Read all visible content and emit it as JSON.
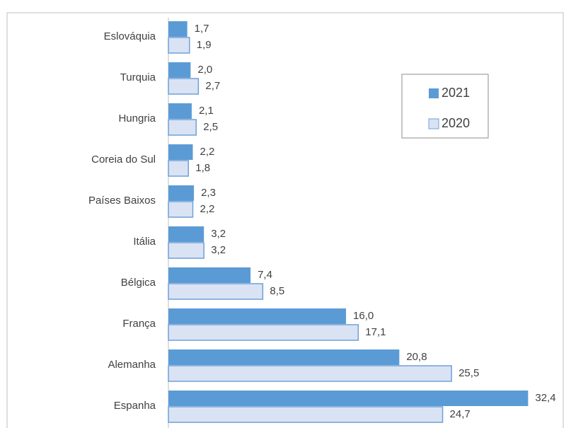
{
  "chart_data": {
    "type": "bar",
    "orientation": "horizontal",
    "categories": [
      "Eslováquia",
      "Turquia",
      "Hungria",
      "Coreia do Sul",
      "Países Baixos",
      "Itália",
      "Bélgica",
      "França",
      "Alemanha",
      "Espanha"
    ],
    "series": [
      {
        "name": "2021",
        "color": "#5b9bd5",
        "values": [
          1.7,
          2.0,
          2.1,
          2.2,
          2.3,
          3.2,
          7.4,
          16.0,
          20.8,
          32.4
        ],
        "value_labels": [
          "1,7",
          "2,0",
          "2,1",
          "2,2",
          "2,3",
          "3,2",
          "7,4",
          "16,0",
          "20,8",
          "32,4"
        ]
      },
      {
        "name": "2020",
        "color": "#dae3f3",
        "values": [
          1.9,
          2.7,
          2.5,
          1.8,
          2.2,
          3.2,
          8.5,
          17.1,
          25.5,
          24.7
        ],
        "value_labels": [
          "1,9",
          "2,7",
          "2,5",
          "1,8",
          "2,2",
          "3,2",
          "8,5",
          "17,1",
          "25,5",
          "24,7"
        ]
      }
    ],
    "xlim": [
      0,
      35.5
    ],
    "legend": "upper right"
  }
}
